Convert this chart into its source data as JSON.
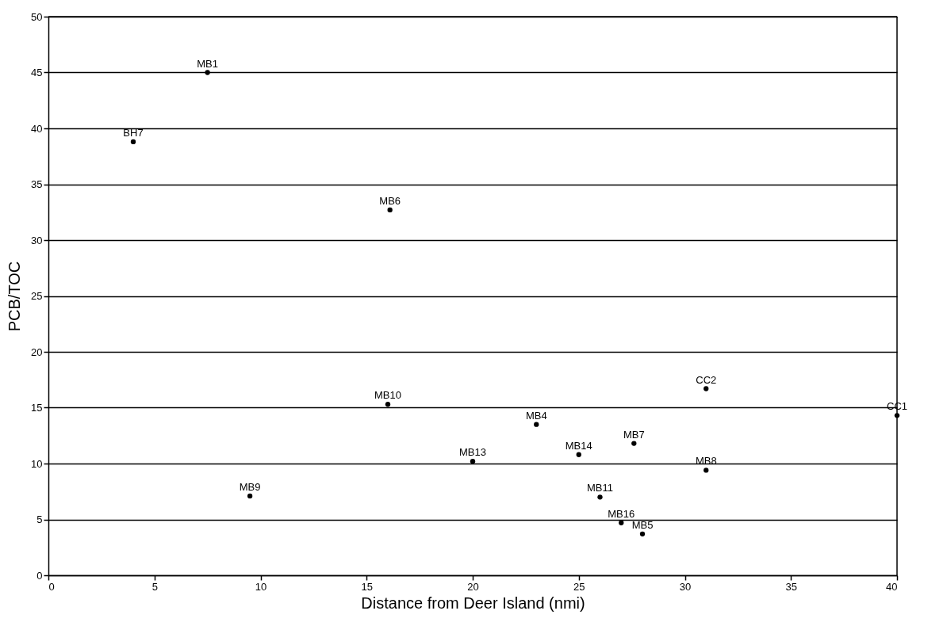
{
  "chart_data": {
    "type": "scatter",
    "xlabel": "Distance from Deer Island (nmi)",
    "ylabel": "PCB/TOC",
    "xlim": [
      0,
      40
    ],
    "xticks": [
      0,
      5,
      10,
      15,
      20,
      25,
      30,
      35,
      40
    ],
    "ylim": [
      0,
      50
    ],
    "yticks": [
      0,
      5,
      10,
      15,
      20,
      25,
      30,
      35,
      40,
      45,
      50
    ],
    "grid": "y",
    "marker": "circle",
    "x": [
      7.5,
      4.0,
      16.1,
      16.0,
      31.0,
      40.0,
      23.0,
      27.6,
      25.0,
      20.0,
      31.0,
      9.5,
      26.0,
      27.0,
      28.0
    ],
    "series": [
      {
        "color": "#000000",
        "values": [
          45.0,
          38.8,
          32.7,
          15.3,
          16.7,
          14.3,
          13.5,
          11.8,
          10.8,
          10.2,
          9.4,
          7.1,
          7.0,
          4.7,
          3.7
        ]
      }
    ],
    "annotations": [
      {
        "text": "MB1",
        "x": 7.5,
        "y": 45.0
      },
      {
        "text": "BH7",
        "x": 4.0,
        "y": 38.8
      },
      {
        "text": "MB6",
        "x": 16.1,
        "y": 32.7
      },
      {
        "text": "MB10",
        "x": 16.0,
        "y": 15.3
      },
      {
        "text": "CC2",
        "x": 31.0,
        "y": 16.7
      },
      {
        "text": "CC1",
        "x": 40.0,
        "y": 14.3
      },
      {
        "text": "MB4",
        "x": 23.0,
        "y": 13.5
      },
      {
        "text": "MB7",
        "x": 27.6,
        "y": 11.8
      },
      {
        "text": "MB14",
        "x": 25.0,
        "y": 10.8
      },
      {
        "text": "MB13",
        "x": 20.0,
        "y": 10.2
      },
      {
        "text": "MB8",
        "x": 31.0,
        "y": 9.4
      },
      {
        "text": "MB9",
        "x": 9.5,
        "y": 7.1
      },
      {
        "text": "MB11",
        "x": 26.0,
        "y": 7.0
      },
      {
        "text": "MB16",
        "x": 27.0,
        "y": 4.7
      },
      {
        "text": "MB5",
        "x": 28.0,
        "y": 3.7
      }
    ]
  }
}
